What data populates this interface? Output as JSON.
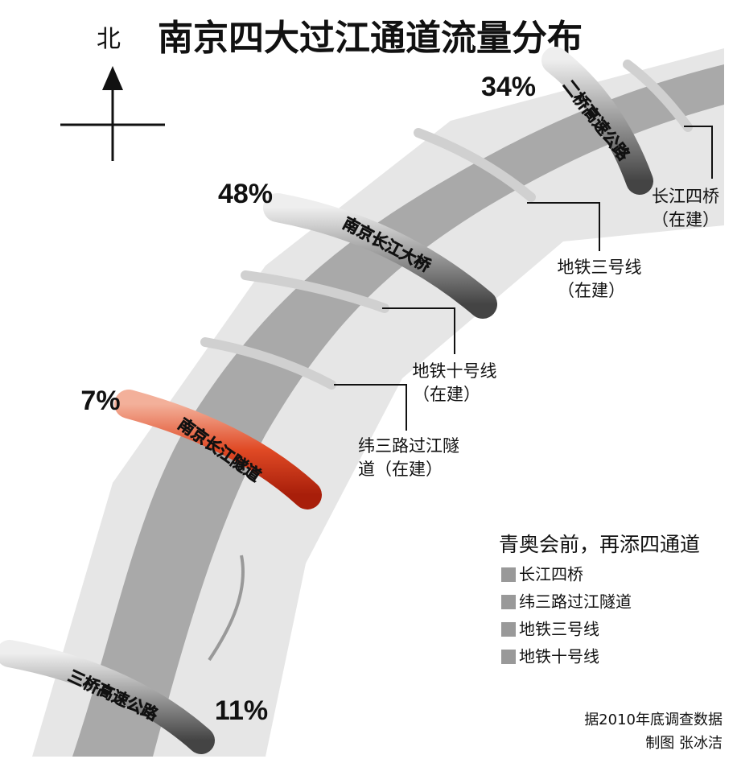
{
  "header": {
    "north": "北",
    "title": "南京四大过江通道流量分布"
  },
  "crossings": [
    {
      "name": "二桥高速公路",
      "share": "34%"
    },
    {
      "name": "南京长江大桥",
      "share": "48%"
    },
    {
      "name": "南京长江隧道",
      "share": "7%"
    },
    {
      "name": "三桥高速公路",
      "share": "11%"
    }
  ],
  "planned": [
    {
      "label": [
        "长江四桥",
        "（在建）"
      ]
    },
    {
      "label": [
        "地铁三号线",
        "（在建）"
      ]
    },
    {
      "label": [
        "地铁十号线",
        "（在建）"
      ]
    },
    {
      "label": [
        "纬三路过江隧",
        "道（在建）"
      ]
    }
  ],
  "legend": {
    "title": "青奥会前，再添四通道",
    "items": [
      "长江四桥",
      "纬三路过江隧道",
      "地铁三号线",
      "地铁十号线"
    ]
  },
  "footer": {
    "source": "据2010年底调查数据",
    "credit": "制图 张冰洁"
  }
}
